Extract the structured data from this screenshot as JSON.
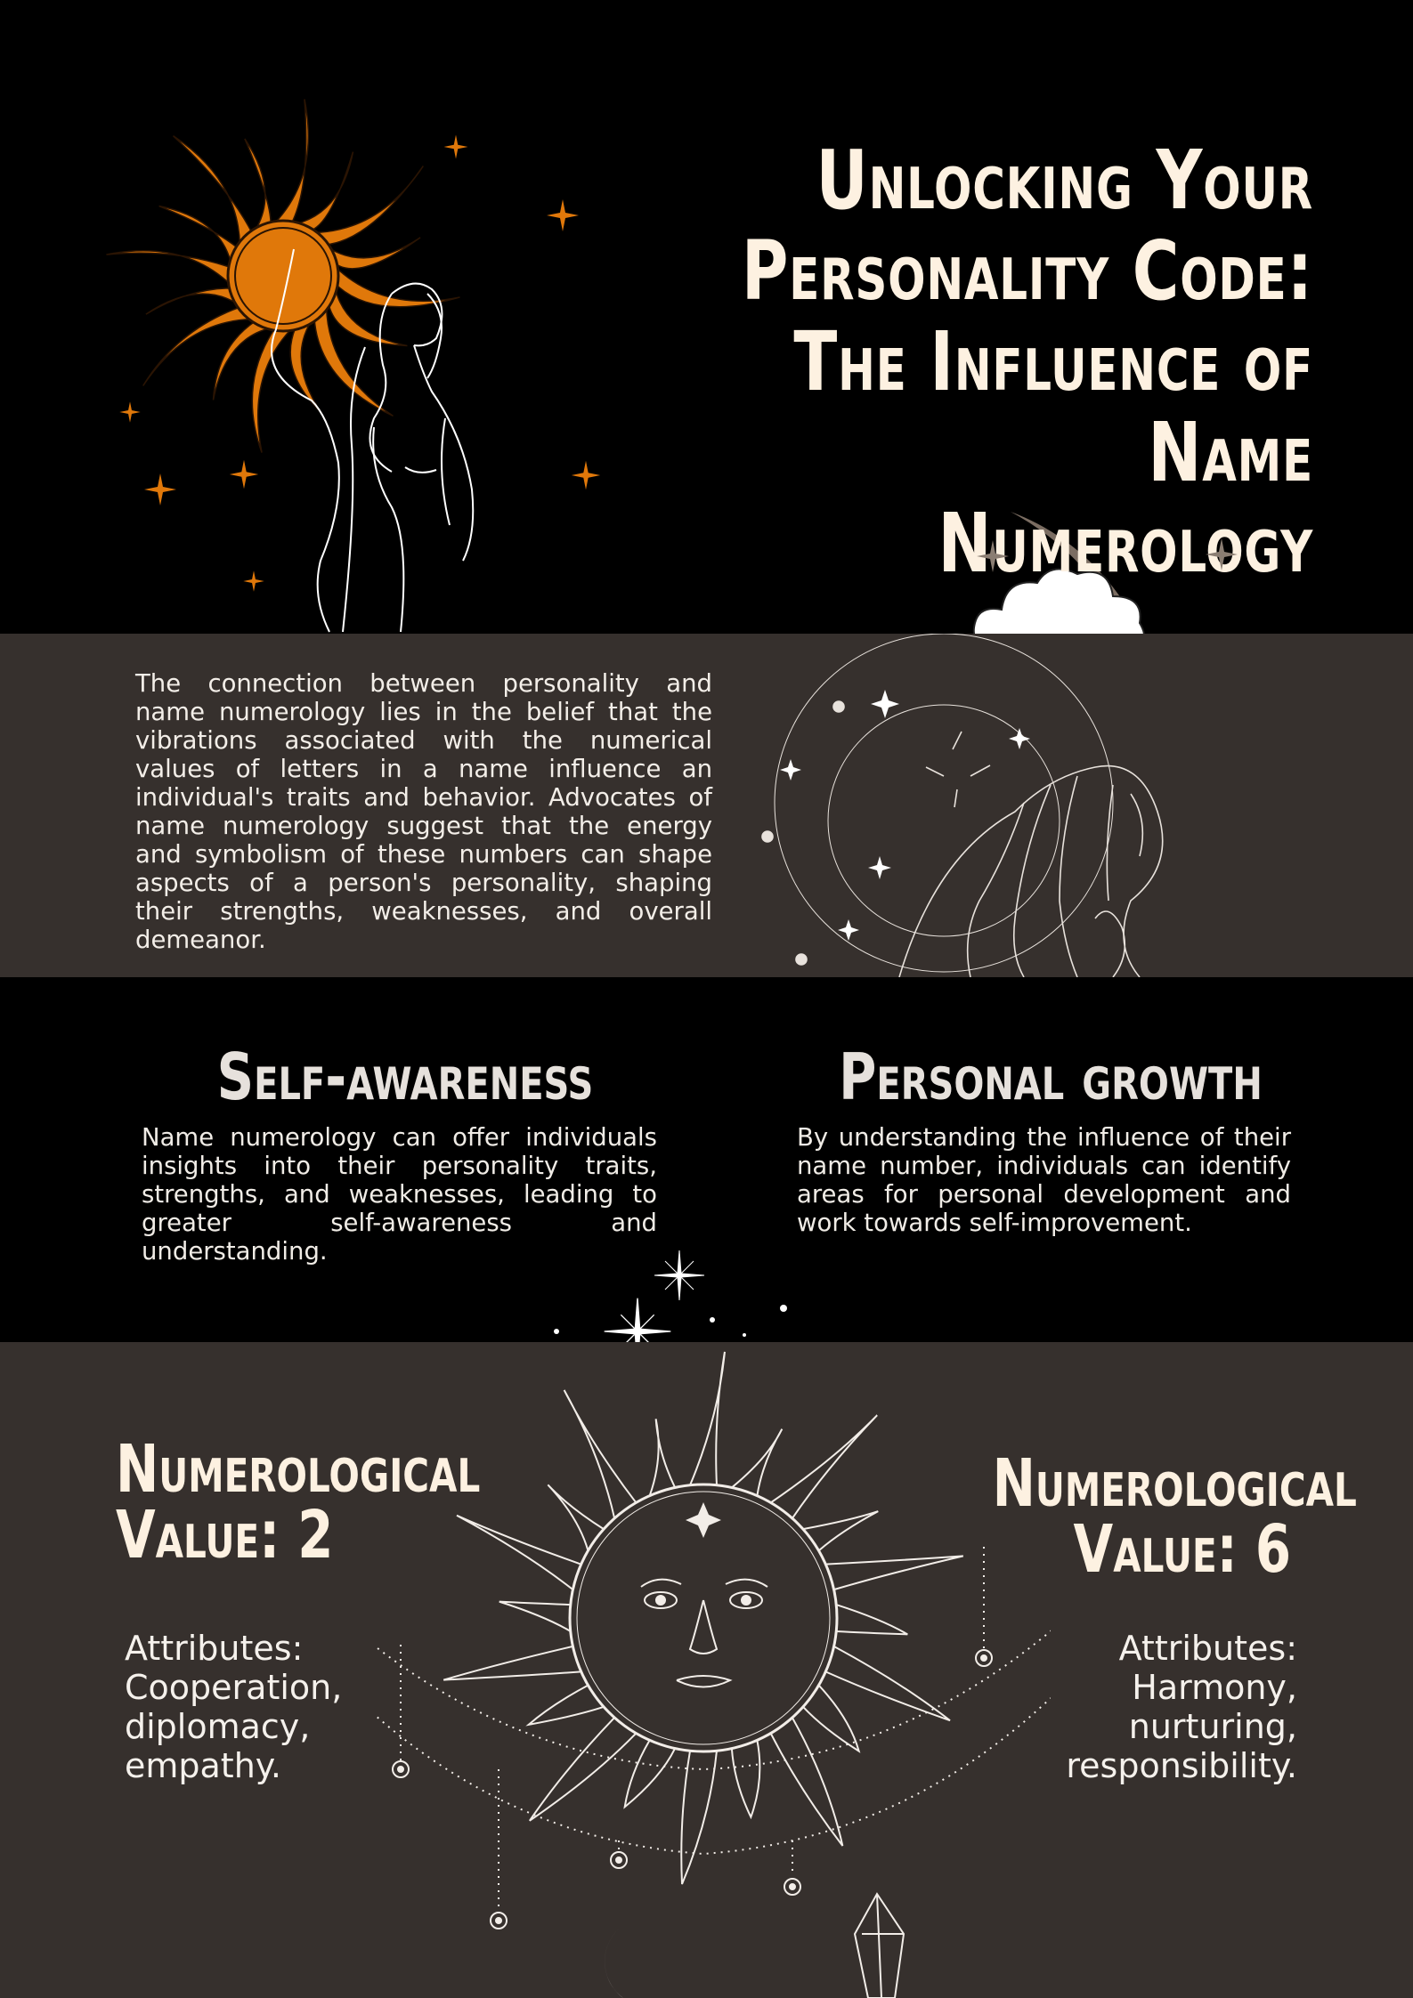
{
  "header": {
    "title_lines": [
      "Unlocking Your",
      "Personality Code:",
      "The Influence of Name",
      "Numerology"
    ]
  },
  "intro": {
    "text": "The connection between personality and name numerology lies in the belief that the vibrations associated with the numerical values of letters in a name influence an individual's traits and behavior. Advocates of name numerology suggest that the energy and symbolism of these numbers can shape aspects of a person's personality, shaping their strengths, weaknesses, and overall demeanor."
  },
  "benefits": [
    {
      "title": "Self-awareness",
      "text": "Name numerology can offer individuals insights into their personality traits, strengths, and weaknesses, leading to greater self-awareness and understanding."
    },
    {
      "title": "Personal growth",
      "text": "By understanding the influence of their name number, individuals can identify areas for personal development and work towards self-improvement."
    }
  ],
  "values": [
    {
      "heading_lines": [
        "Numerological",
        "Value: 2"
      ],
      "attribute_lines": [
        "Attributes:",
        "Cooperation,",
        "diplomacy,",
        "empathy."
      ]
    },
    {
      "heading_lines": [
        "Numerological",
        "Value: 6"
      ],
      "attribute_lines": [
        "Attributes:",
        "Harmony,",
        "nurturing,",
        "responsibility."
      ]
    }
  ],
  "colors": {
    "background_black": "#000000",
    "background_brown": "#36302d",
    "sun_orange": "#e0780a",
    "moon_taupe": "#7b6d62",
    "cream_text": "#fdf1e1"
  },
  "icons": [
    "orange-sun-icon",
    "woman-line-art-icon",
    "crescent-moon-icon",
    "cloud-icon",
    "sun-face-icon",
    "sparkle-star-icon"
  ]
}
